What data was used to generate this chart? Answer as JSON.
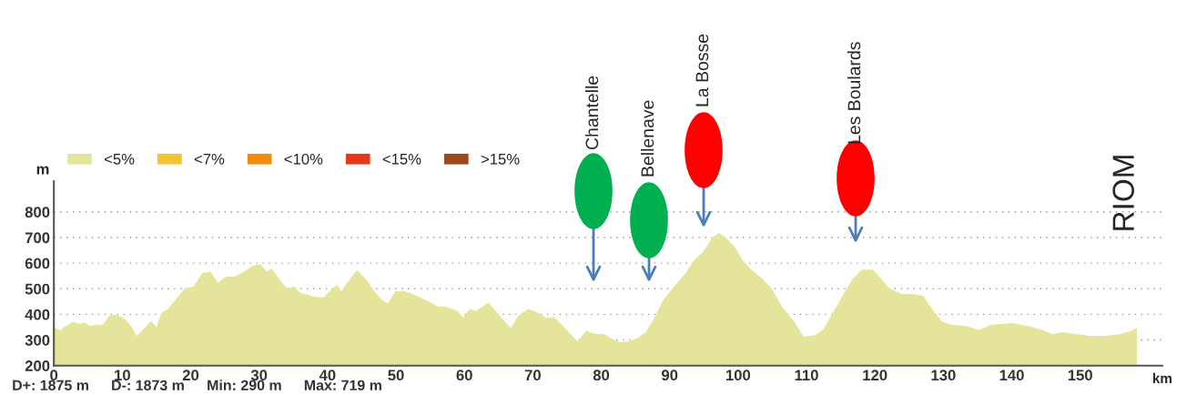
{
  "chart_data": {
    "type": "area",
    "xlabel": "km",
    "ylabel": "m",
    "x": [
      0,
      1,
      1.4,
      2.8,
      3.7,
      4.5,
      5.2,
      6.3,
      7.2,
      8.1,
      9.2,
      10.4,
      11.3,
      12.1,
      12.8,
      14.2,
      15.0,
      15.7,
      16.6,
      17.7,
      19.1,
      20.4,
      21.7,
      22.9,
      24.0,
      25.1,
      26.4,
      27.8,
      29.1,
      30.2,
      31.1,
      31.8,
      33.6,
      34.2,
      35.1,
      36.0,
      37.1,
      38.0,
      39.4,
      40.5,
      41.4,
      42.0,
      42.9,
      44.3,
      45.6,
      47.0,
      48.1,
      48.8,
      49.9,
      51.3,
      52.7,
      54.5,
      56.1,
      57.2,
      59.0,
      59.8,
      60.8,
      61.7,
      63.5,
      64.8,
      66.1,
      66.8,
      67.9,
      69.3,
      70.6,
      72.0,
      73.1,
      74.0,
      75.1,
      76.5,
      77.8,
      79.1,
      80.5,
      81.6,
      82.7,
      84.1,
      85.4,
      86.5,
      87.7,
      89.0,
      90.8,
      92.2,
      93.5,
      94.9,
      96.2,
      97.2,
      98.0,
      99.4,
      100.7,
      102.0,
      103.4,
      104.9,
      106.4,
      108.2,
      109.6,
      111.3,
      112.5,
      113.6,
      115.4,
      116.7,
      118.1,
      119.7,
      120.8,
      122.1,
      123.9,
      125.7,
      127.1,
      128.4,
      129.8,
      131.1,
      133.4,
      135.2,
      137.0,
      140.1,
      142.4,
      144.6,
      146.0,
      147.3,
      149.1,
      151.3,
      153.6,
      155.8,
      157.4,
      158.3
    ],
    "series": [
      {
        "name": "<5%",
        "color": "#e4e49a",
        "values": [
          348,
          338,
          348,
          371,
          362,
          369,
          354,
          360,
          360,
          395,
          399,
          381,
          354,
          315,
          334,
          374,
          350,
          407,
          419,
          454,
          502,
          508,
          561,
          567,
          523,
          547,
          547,
          567,
          591,
          596,
          567,
          579,
          514,
          499,
          510,
          484,
          478,
          469,
          466,
          496,
          514,
          490,
          525,
          573,
          537,
          484,
          454,
          443,
          490,
          490,
          476,
          454,
          431,
          431,
          413,
          389,
          421,
          413,
          446,
          407,
          366,
          346,
          395,
          421,
          409,
          386,
          389,
          366,
          336,
          295,
          336,
          324,
          322,
          304,
          292,
          295,
          309,
          330,
          383,
          454,
          514,
          556,
          609,
          644,
          698,
          718,
          704,
          667,
          609,
          573,
          543,
          502,
          431,
          372,
          313,
          319,
          343,
          396,
          478,
          537,
          575,
          575,
          543,
          502,
          480,
          480,
          472,
          419,
          372,
          360,
          354,
          338,
          360,
          366,
          354,
          338,
          322,
          330,
          324,
          316,
          316,
          322,
          336,
          348
        ]
      },
      {
        "name": "<7%",
        "color": "#f5c435",
        "values": [
          null,
          null,
          null,
          null,
          null,
          null,
          null,
          null,
          null,
          null,
          null,
          null,
          null,
          null,
          null,
          null,
          null,
          null,
          null,
          null,
          null,
          null,
          null,
          null,
          null,
          null,
          null,
          null,
          null,
          null,
          null,
          null,
          null,
          null,
          null,
          null,
          null,
          null,
          null,
          null,
          null,
          null,
          null,
          null,
          null,
          null,
          null,
          null,
          null,
          null,
          null,
          null,
          null,
          null,
          null,
          null,
          null,
          null,
          null,
          null,
          null,
          null,
          null,
          null,
          null,
          null,
          null,
          null,
          null,
          null,
          null,
          null,
          null,
          null,
          null,
          null,
          null,
          null,
          null,
          null,
          null,
          null,
          null,
          null,
          null,
          null,
          null,
          null,
          null,
          null,
          null,
          null,
          null,
          null,
          null,
          null,
          null,
          null,
          null,
          null,
          null,
          null,
          null,
          null,
          null,
          null,
          null,
          null,
          null,
          null,
          null,
          null,
          null,
          null,
          null,
          null,
          null,
          null,
          null,
          null,
          null,
          null,
          null,
          null
        ]
      },
      {
        "name": "<10%",
        "color": "#f28c0f",
        "values": [
          null,
          null,
          null,
          null,
          null,
          null,
          null,
          null,
          null,
          null,
          null,
          null,
          null,
          null,
          null,
          null,
          null,
          null,
          null,
          null,
          null,
          null,
          null,
          null,
          null,
          null,
          null,
          null,
          null,
          null,
          null,
          null,
          null,
          null,
          null,
          null,
          null,
          null,
          null,
          null,
          null,
          null,
          null,
          null,
          null,
          null,
          null,
          null,
          null,
          null,
          null,
          null,
          null,
          null,
          null,
          null,
          null,
          null,
          null,
          null,
          null,
          null,
          null,
          null,
          null,
          null,
          null,
          null,
          null,
          null,
          null,
          null,
          null,
          null,
          null,
          null,
          null,
          null,
          null,
          null,
          null,
          null,
          null,
          null,
          null,
          null,
          null,
          null,
          null,
          null,
          null,
          null,
          null,
          null,
          null,
          null,
          null,
          null,
          null,
          null,
          null,
          null,
          null,
          null,
          null,
          null,
          null,
          null,
          null,
          null,
          null,
          null,
          null,
          null,
          null,
          null,
          null,
          null,
          null,
          null,
          null,
          null,
          null,
          null
        ]
      },
      {
        "name": "<15%",
        "color": "#e8381a",
        "values": [
          null,
          null,
          null,
          null,
          null,
          null,
          null,
          null,
          null,
          null,
          null,
          null,
          null,
          null,
          null,
          null,
          null,
          null,
          null,
          null,
          null,
          null,
          null,
          null,
          null,
          null,
          null,
          null,
          null,
          null,
          null,
          null,
          null,
          null,
          null,
          null,
          null,
          null,
          null,
          null,
          null,
          null,
          null,
          null,
          null,
          null,
          null,
          null,
          null,
          null,
          null,
          null,
          null,
          null,
          null,
          null,
          null,
          null,
          null,
          null,
          null,
          null,
          null,
          null,
          null,
          null,
          null,
          null,
          null,
          null,
          null,
          null,
          null,
          null,
          null,
          null,
          null,
          null,
          null,
          null,
          null,
          null,
          null,
          null,
          null,
          null,
          null,
          null,
          null,
          null,
          null,
          null,
          null,
          null,
          null,
          null,
          null,
          null,
          null,
          null,
          null,
          null,
          null,
          null,
          null,
          null,
          null,
          null,
          null,
          null,
          null,
          null,
          null,
          null,
          null,
          null,
          null,
          null,
          null,
          null,
          null,
          null,
          null,
          null
        ]
      },
      {
        "name": ">15%",
        "color": "#9b4a1b",
        "values": [
          null,
          null,
          null,
          null,
          null,
          null,
          null,
          null,
          null,
          null,
          null,
          null,
          null,
          null,
          null,
          null,
          null,
          null,
          null,
          null,
          null,
          null,
          null,
          null,
          null,
          null,
          null,
          null,
          null,
          null,
          null,
          null,
          null,
          null,
          null,
          null,
          null,
          null,
          null,
          null,
          null,
          null,
          null,
          null,
          null,
          null,
          null,
          null,
          null,
          null,
          null,
          null,
          null,
          null,
          null,
          null,
          null,
          null,
          null,
          null,
          null,
          null,
          null,
          null,
          null,
          null,
          null,
          null,
          null,
          null,
          null,
          null,
          null,
          null,
          null,
          null,
          null,
          null,
          null,
          null,
          null,
          null,
          null,
          null,
          null,
          null,
          null,
          null,
          null,
          null,
          null,
          null,
          null,
          null,
          null,
          null,
          null,
          null,
          null,
          null,
          null,
          null,
          null,
          null,
          null,
          null,
          null,
          null,
          null,
          null,
          null,
          null,
          null,
          null,
          null,
          null,
          null,
          null,
          null,
          null,
          null,
          null,
          null,
          null
        ]
      }
    ],
    "xlim": [
      0,
      162
    ],
    "xticks": [
      0,
      10,
      20,
      30,
      40,
      50,
      60,
      70,
      80,
      90,
      100,
      110,
      120,
      130,
      140,
      150
    ],
    "ylim": [
      200,
      920
    ],
    "yticks": [
      200,
      300,
      400,
      500,
      600,
      700,
      800
    ],
    "grid": "y",
    "legend": "top left",
    "annotations": [
      "Chantelle",
      "Bellenave",
      "La Bosse",
      "Les Boulards",
      "RIOM",
      "D+: 1875 m",
      "D-: 1873 m",
      "Min: 290 m",
      "Max: 719 m"
    ]
  }
}
